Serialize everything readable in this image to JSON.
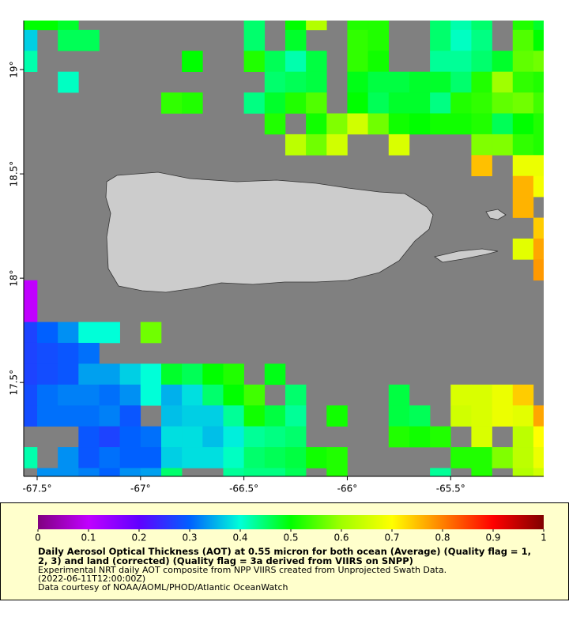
{
  "chart_data": {
    "type": "heatmap",
    "x": [
      -67.55,
      -67.45,
      -67.35,
      -67.25,
      -67.15,
      -67.05,
      -66.95,
      -66.85,
      -66.75,
      -66.65,
      -66.55,
      -66.45,
      -66.35,
      -66.25,
      -66.15,
      -66.05,
      -65.95,
      -65.85,
      -65.75,
      -65.65,
      -65.55,
      -65.45,
      -65.35,
      -65.25,
      -65.15,
      -65.05
    ],
    "y": [
      19.24,
      19.14,
      19.04,
      18.94,
      18.84,
      18.74,
      18.64,
      18.54,
      18.44,
      18.34,
      18.24,
      18.14,
      18.04,
      17.94,
      17.84,
      17.74,
      17.64,
      17.54,
      17.44,
      17.34,
      17.24,
      17.14,
      17.04
    ],
    "values": [
      [
        0.5,
        0.5,
        0.48,
        null,
        null,
        null,
        null,
        null,
        null,
        null,
        null,
        0.45,
        null,
        0.5,
        0.62,
        null,
        0.52,
        0.52,
        null,
        null,
        0.45,
        0.42,
        0.45,
        null,
        0.52,
        0.48
      ],
      [
        0.37,
        null,
        0.46,
        0.46,
        null,
        null,
        null,
        null,
        null,
        null,
        null,
        0.45,
        null,
        0.48,
        null,
        null,
        0.53,
        0.52,
        null,
        null,
        0.45,
        0.41,
        0.44,
        null,
        0.55,
        0.5
      ],
      [
        0.42,
        null,
        null,
        null,
        null,
        null,
        null,
        null,
        0.5,
        null,
        null,
        0.52,
        0.46,
        0.42,
        0.47,
        null,
        0.53,
        0.51,
        null,
        null,
        0.43,
        0.43,
        0.45,
        0.48,
        0.56,
        0.57
      ],
      [
        null,
        null,
        0.41,
        null,
        null,
        null,
        null,
        null,
        null,
        null,
        null,
        null,
        0.45,
        0.46,
        0.47,
        null,
        0.49,
        0.47,
        0.47,
        0.48,
        0.48,
        0.45,
        0.52,
        0.6,
        0.53,
        0.52
      ],
      [
        null,
        null,
        null,
        null,
        null,
        null,
        null,
        0.53,
        0.52,
        null,
        null,
        0.44,
        0.48,
        0.52,
        0.55,
        null,
        0.5,
        0.46,
        0.48,
        0.48,
        0.44,
        0.52,
        0.53,
        0.56,
        0.57,
        0.54
      ],
      [
        null,
        null,
        null,
        null,
        null,
        null,
        null,
        null,
        null,
        null,
        null,
        null,
        0.52,
        null,
        0.51,
        0.58,
        0.65,
        0.57,
        0.51,
        0.5,
        0.51,
        0.51,
        0.52,
        0.46,
        0.5,
        0.52
      ],
      [
        null,
        null,
        null,
        null,
        null,
        null,
        null,
        null,
        null,
        null,
        null,
        null,
        null,
        0.63,
        0.57,
        0.65,
        null,
        null,
        0.66,
        null,
        null,
        null,
        0.58,
        0.58,
        0.53,
        0.52
      ],
      [
        null,
        null,
        null,
        null,
        null,
        null,
        null,
        null,
        null,
        null,
        null,
        null,
        null,
        null,
        null,
        null,
        null,
        null,
        null,
        null,
        null,
        null,
        0.75,
        null,
        0.68,
        0.68
      ],
      [
        null,
        null,
        null,
        null,
        null,
        null,
        null,
        null,
        null,
        null,
        null,
        null,
        null,
        null,
        null,
        null,
        null,
        null,
        null,
        null,
        null,
        null,
        null,
        null,
        0.76,
        0.69
      ],
      [
        null,
        null,
        null,
        null,
        null,
        null,
        null,
        null,
        null,
        null,
        null,
        null,
        null,
        null,
        null,
        null,
        null,
        null,
        null,
        null,
        null,
        null,
        null,
        null,
        0.76,
        null
      ],
      [
        null,
        null,
        null,
        null,
        null,
        null,
        null,
        null,
        null,
        null,
        null,
        null,
        null,
        null,
        null,
        null,
        null,
        null,
        null,
        null,
        null,
        null,
        null,
        null,
        null,
        0.74
      ],
      [
        null,
        null,
        null,
        null,
        null,
        null,
        null,
        null,
        null,
        null,
        null,
        null,
        null,
        null,
        null,
        null,
        null,
        null,
        null,
        null,
        null,
        null,
        null,
        null,
        0.67,
        0.77
      ],
      [
        null,
        null,
        null,
        null,
        null,
        null,
        null,
        null,
        null,
        null,
        null,
        null,
        null,
        null,
        null,
        null,
        null,
        null,
        null,
        null,
        null,
        null,
        null,
        null,
        null,
        0.78
      ],
      [
        0.1,
        null,
        null,
        null,
        null,
        null,
        null,
        null,
        null,
        null,
        null,
        null,
        null,
        null,
        null,
        null,
        null,
        null,
        null,
        null,
        null,
        null,
        null,
        null,
        null,
        null
      ],
      [
        0.1,
        null,
        null,
        null,
        null,
        null,
        null,
        null,
        null,
        null,
        null,
        null,
        null,
        null,
        null,
        null,
        null,
        null,
        null,
        null,
        null,
        null,
        null,
        null,
        null,
        null
      ],
      [
        0.27,
        0.3,
        0.33,
        0.4,
        0.4,
        null,
        0.57,
        null,
        null,
        null,
        null,
        null,
        null,
        null,
        null,
        null,
        null,
        null,
        null,
        null,
        null,
        null,
        null,
        null,
        null,
        null
      ],
      [
        0.27,
        0.28,
        0.29,
        0.31,
        null,
        null,
        null,
        null,
        null,
        null,
        null,
        null,
        null,
        null,
        null,
        null,
        null,
        null,
        null,
        null,
        null,
        null,
        null,
        null,
        null,
        null
      ],
      [
        0.27,
        0.28,
        0.29,
        0.34,
        0.34,
        0.37,
        0.4,
        0.48,
        0.46,
        0.5,
        0.52,
        null,
        0.49,
        null,
        null,
        null,
        null,
        null,
        null,
        null,
        null,
        null,
        null,
        null,
        null,
        null
      ],
      [
        0.28,
        0.31,
        0.32,
        0.32,
        0.31,
        0.33,
        0.4,
        0.35,
        0.38,
        0.45,
        0.5,
        0.54,
        null,
        0.45,
        null,
        null,
        null,
        null,
        0.47,
        null,
        null,
        0.66,
        0.66,
        0.68,
        0.74,
        null
      ],
      [
        0.28,
        0.31,
        0.31,
        0.31,
        0.32,
        0.29,
        null,
        0.36,
        0.37,
        0.37,
        0.43,
        0.51,
        0.47,
        0.43,
        null,
        0.51,
        null,
        null,
        0.47,
        0.46,
        null,
        0.65,
        0.66,
        0.68,
        0.67,
        0.77
      ],
      [
        null,
        null,
        null,
        0.29,
        0.27,
        0.3,
        0.31,
        0.38,
        0.38,
        0.36,
        0.39,
        0.43,
        0.44,
        0.45,
        null,
        null,
        null,
        null,
        0.52,
        0.51,
        0.52,
        null,
        0.66,
        null,
        0.63,
        0.7
      ],
      [
        0.42,
        null,
        0.33,
        0.29,
        0.31,
        0.3,
        0.3,
        0.37,
        0.38,
        0.38,
        0.41,
        0.45,
        0.46,
        0.47,
        0.51,
        0.52,
        null,
        null,
        null,
        null,
        null,
        0.52,
        0.52,
        0.58,
        0.63,
        0.68
      ],
      [
        null,
        0.33,
        0.33,
        0.32,
        0.3,
        0.33,
        0.34,
        0.45,
        null,
        null,
        0.43,
        0.44,
        0.44,
        0.46,
        null,
        0.52,
        null,
        null,
        null,
        null,
        0.43,
        null,
        0.52,
        null,
        0.62,
        0.65
      ]
    ],
    "xlim": [
      -67.565,
      -65.05
    ],
    "ylim": [
      17.05,
      19.235
    ],
    "xticks": [
      {
        "value": -67.5,
        "label": "-67.5°"
      },
      {
        "value": -67,
        "label": "-67°"
      },
      {
        "value": -66.5,
        "label": "-66.5°"
      },
      {
        "value": -66,
        "label": "-66°"
      },
      {
        "value": -65.5,
        "label": "-65.5°"
      }
    ],
    "yticks": [
      {
        "value": 17.5,
        "label": "17.5°"
      },
      {
        "value": 18,
        "label": "18°"
      },
      {
        "value": 18.5,
        "label": "18.5°"
      },
      {
        "value": 19,
        "label": "19°"
      }
    ],
    "colorscale": [
      "#800080",
      "#c000ff",
      "#6000ff",
      "#0060ff",
      "#00ffd8",
      "#00ff00",
      "#a0ff00",
      "#ffff00",
      "#ff8000",
      "#ff0000",
      "#800000"
    ],
    "clim": [
      0,
      1
    ],
    "colorbar_ticks": [
      0,
      0.1,
      0.2,
      0.3,
      0.4,
      0.5,
      0.6,
      0.7,
      0.8,
      0.9,
      1
    ],
    "title": "Daily Aerosol Optical Thickness (AOT) at 0.55 micron for both ocean (Average) (Quality flag = 1, 2, 3) and land (corrected) (Quality flag = 3a derived from VIIRS on SNPP)",
    "notes": [
      "Experimental NRT daily AOT composite from NPP VIIRS created from Unprojected Swath Data.",
      "(2022-06-11T12:00:00Z)",
      "Data courtesy of NOAA/AOML/PHOD/Atlantic OceanWatch"
    ]
  }
}
